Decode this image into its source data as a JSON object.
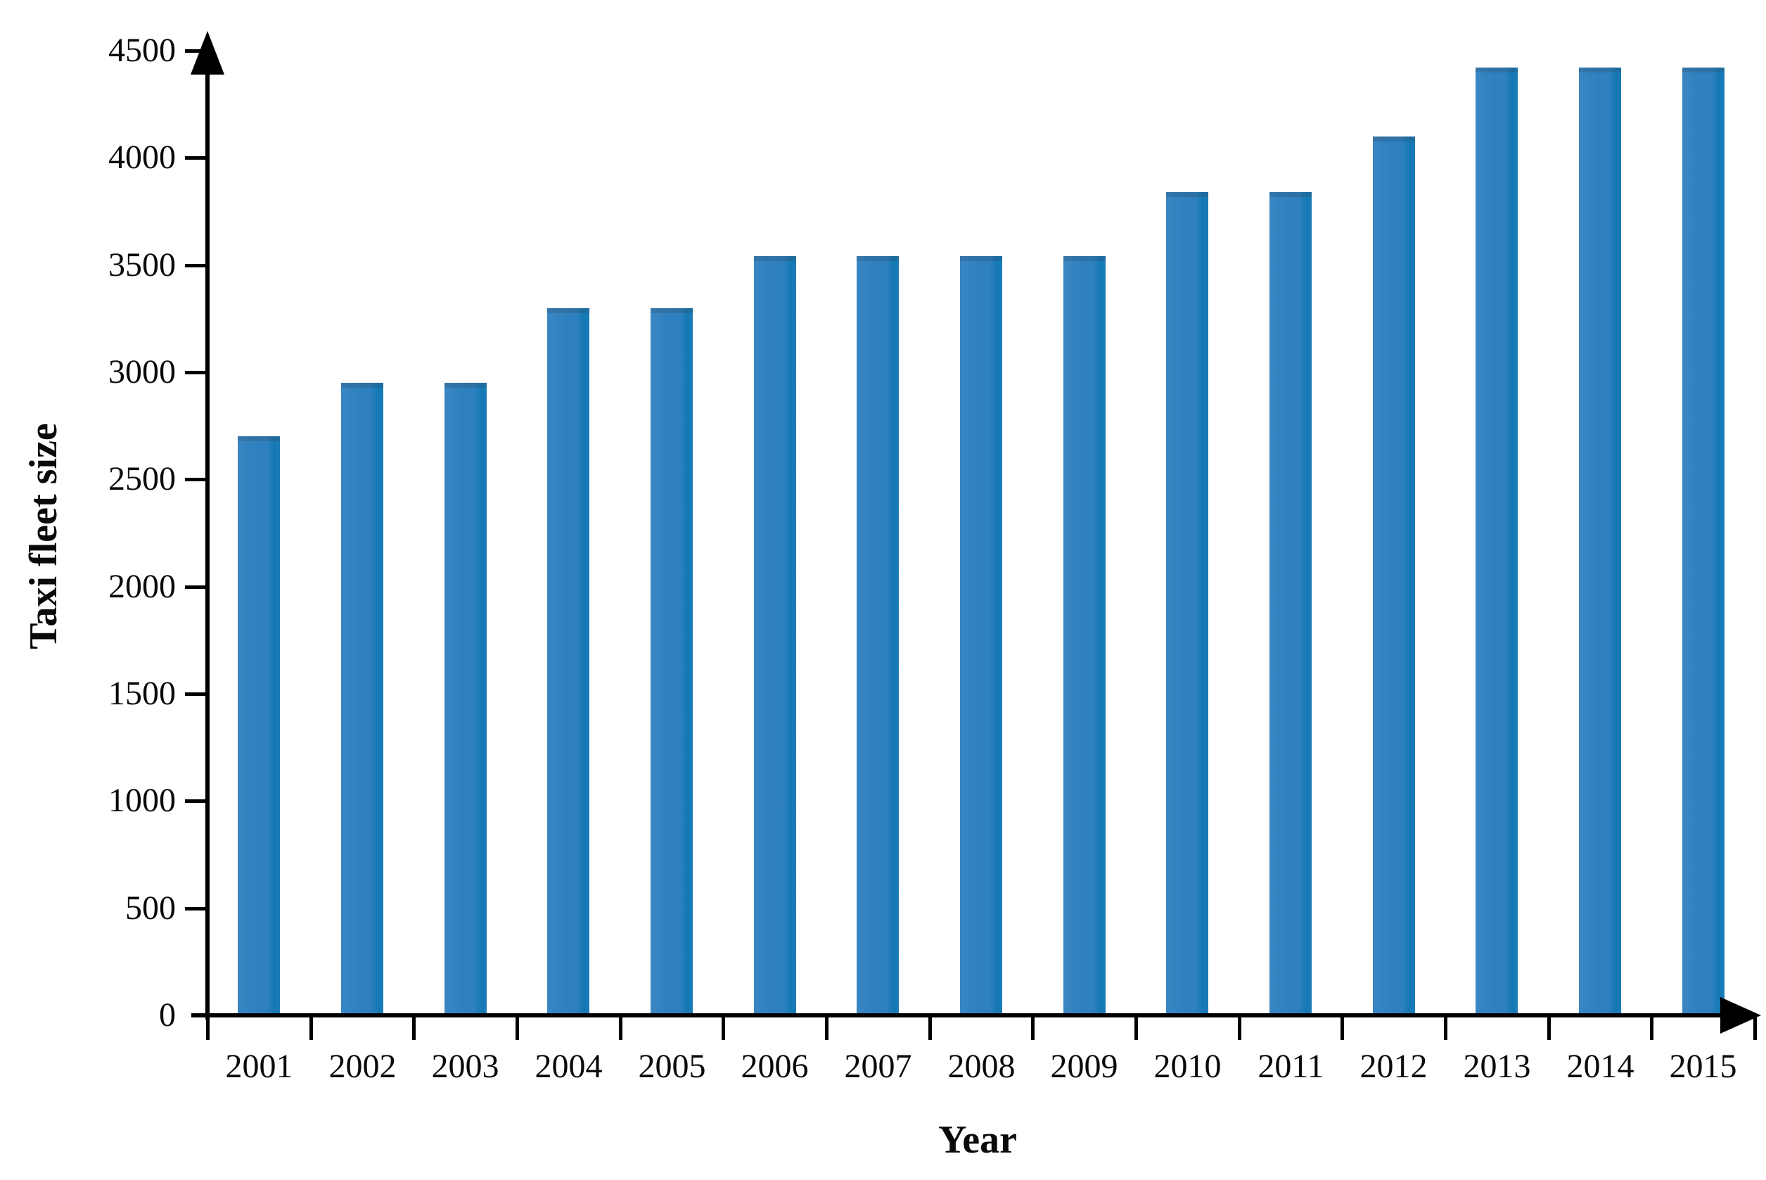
{
  "chart_data": {
    "type": "bar",
    "title": "",
    "xlabel": "Year",
    "ylabel": "Taxi fleet size",
    "categories": [
      "2001",
      "2002",
      "2003",
      "2004",
      "2005",
      "2006",
      "2007",
      "2008",
      "2009",
      "2010",
      "2011",
      "2012",
      "2013",
      "2014",
      "2015"
    ],
    "values": [
      2700,
      2950,
      2950,
      3300,
      3300,
      3540,
      3540,
      3540,
      3540,
      3840,
      3840,
      4100,
      4420,
      4420,
      4420
    ],
    "ylim": [
      0,
      4500
    ],
    "ytick_interval": 500,
    "ytick_labels": [
      "0",
      "500",
      "1000",
      "1500",
      "2000",
      "2500",
      "3000",
      "3500",
      "4000",
      "4500"
    ],
    "grid": false,
    "legend_position": "none",
    "bar_color": "#2e80be",
    "bar_gradient": [
      "#3a86c3",
      "#2e80be",
      "#1478b5"
    ],
    "axis_color": "#000000",
    "background_color": "#ffffff",
    "axis_arrows": [
      "y-up",
      "x-right"
    ]
  }
}
